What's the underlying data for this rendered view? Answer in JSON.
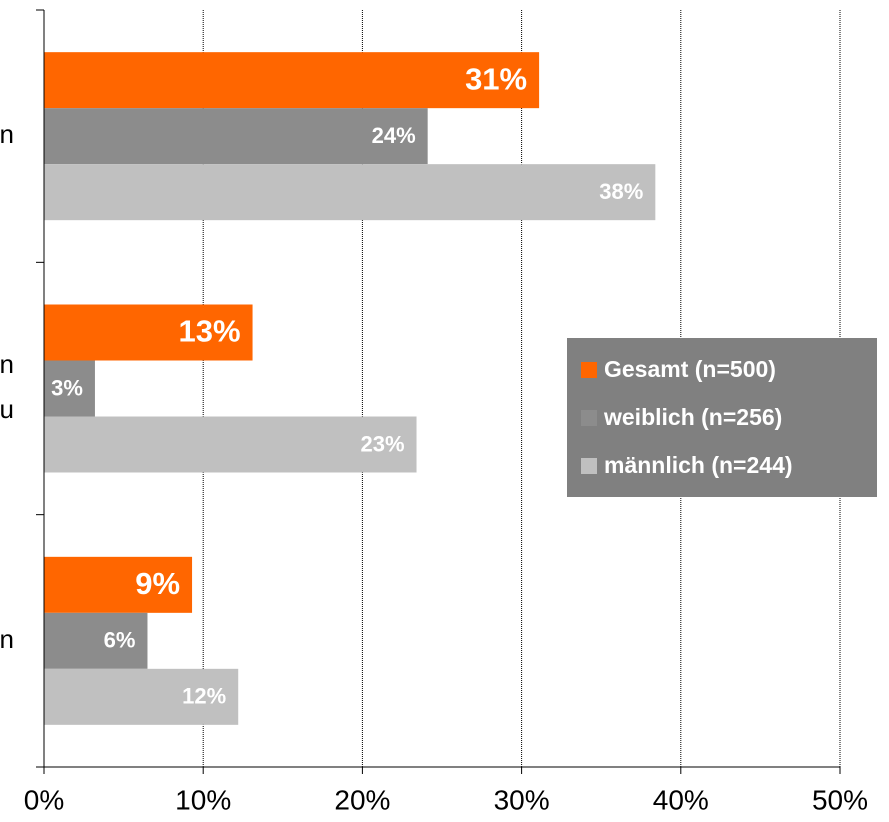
{
  "chart_data": {
    "type": "barh",
    "categories": [
      "n",
      "n\nu",
      "n"
    ],
    "series": [
      {
        "name": "Gesamt (n=500)",
        "color": "#ff6600",
        "values": [
          31.1,
          13.1,
          9.3
        ],
        "value_labels": [
          "31%",
          "13%",
          "9%"
        ]
      },
      {
        "name": "weiblich (n=256)",
        "color": "#8c8c8c",
        "values": [
          24.1,
          3.2,
          6.5
        ],
        "value_labels": [
          "24%",
          "3%",
          "6%"
        ]
      },
      {
        "name": "männlich (n=244)",
        "color": "#c0c0c0",
        "values": [
          38.4,
          23.4,
          12.2
        ],
        "value_labels": [
          "38%",
          "23%",
          "12%"
        ]
      }
    ],
    "xlim": [
      0,
      50
    ],
    "xticks": [
      {
        "value": 0,
        "label": "0%"
      },
      {
        "value": 10,
        "label": "10%"
      },
      {
        "value": 20,
        "label": "20%"
      },
      {
        "value": 30,
        "label": "30%"
      },
      {
        "value": 40,
        "label": "40%"
      },
      {
        "value": 50,
        "label": "50%"
      }
    ],
    "grid": true,
    "legend": "right"
  }
}
